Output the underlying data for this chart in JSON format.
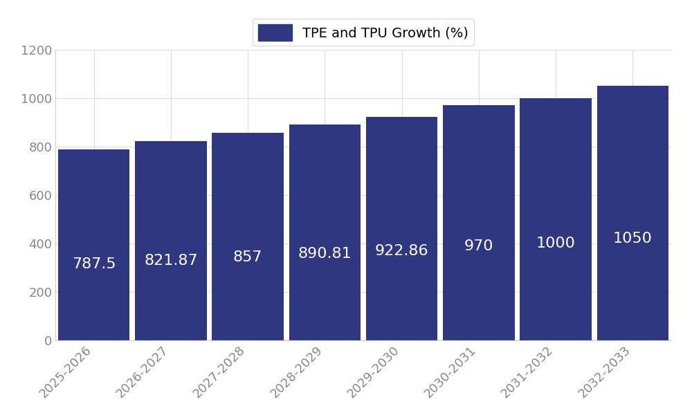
{
  "categories": [
    "2025-2026",
    "2026-2027",
    "2027-2028",
    "2028-2029",
    "2029-2030",
    "2030-2031",
    "2031-2032",
    "2032-2033"
  ],
  "values": [
    787.5,
    821.87,
    857,
    890.81,
    922.86,
    970,
    1000,
    1050
  ],
  "bar_color": "#2E3780",
  "legend_label": "TPE and TPU Growth (%)",
  "ylim": [
    0,
    1200
  ],
  "yticks": [
    0,
    200,
    400,
    600,
    800,
    1000,
    1200
  ],
  "label_color": "#ffffff",
  "label_fontsize": 16,
  "tick_fontsize": 13,
  "legend_fontsize": 14,
  "tick_color": "#888888",
  "background_color": "#ffffff",
  "grid_color": "#dddddd",
  "bar_width": 0.93
}
